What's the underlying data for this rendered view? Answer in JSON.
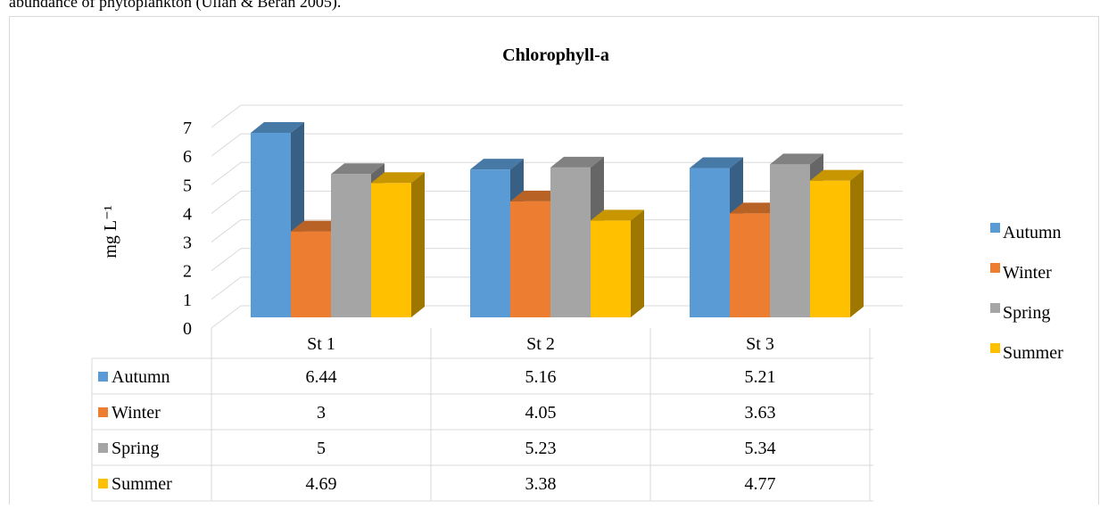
{
  "page_text": "abundance of phytoplankton (Ullah & Beran 2005).",
  "chart_data": {
    "type": "bar3d",
    "title": "Chlorophyll-a",
    "y_label": "mg L⁻¹",
    "categories": [
      "St 1",
      "St 2",
      "St 3"
    ],
    "series": [
      {
        "name": "Autumn",
        "color": "#5b9bd5",
        "values": [
          6.44,
          5.16,
          5.21
        ]
      },
      {
        "name": "Winter",
        "color": "#ed7d31",
        "values": [
          3,
          4.05,
          3.63
        ]
      },
      {
        "name": "Spring",
        "color": "#a5a5a5",
        "values": [
          5,
          5.23,
          5.34
        ]
      },
      {
        "name": "Summer",
        "color": "#ffc000",
        "values": [
          4.69,
          3.38,
          4.77
        ]
      }
    ],
    "ylim": [
      0,
      7
    ],
    "yticks": [
      0,
      1,
      2,
      3,
      4,
      5,
      6,
      7
    ],
    "grid": true,
    "legend": "right",
    "data_table": true
  }
}
